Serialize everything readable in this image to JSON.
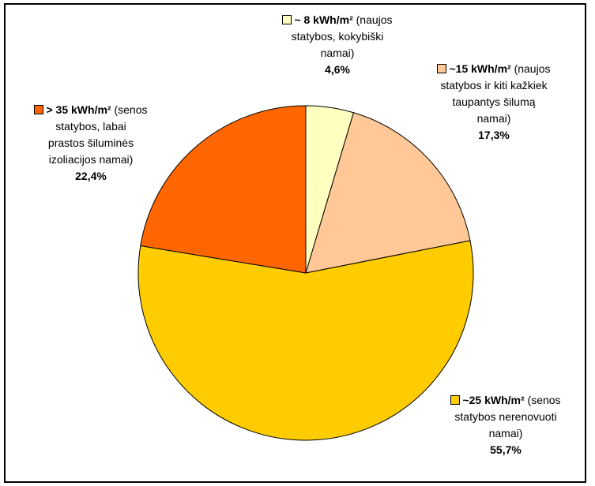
{
  "chart_data": {
    "type": "pie",
    "slices": [
      {
        "value": 4.6,
        "percent_label": "4,6%",
        "label_bold": "~ 8 kWh/m²",
        "label_rest": " (naujos",
        "label_lines": [
          "statybos, kokybiški",
          "namai)"
        ],
        "color": "#FFFFC0"
      },
      {
        "value": 17.3,
        "percent_label": "17,3%",
        "label_bold": "~15 kWh/m²",
        "label_rest": " (naujos",
        "label_lines": [
          "statybos ir kiti kažkiek",
          "taupantys šilumą",
          "namai)"
        ],
        "color": "#FFC896"
      },
      {
        "value": 55.7,
        "percent_label": "55,7%",
        "label_bold": "~25 kWh/m²",
        "label_rest": " (senos",
        "label_lines": [
          "statybos nerenovuoti",
          "namai)"
        ],
        "color": "#FFCC00"
      },
      {
        "value": 22.4,
        "percent_label": "22,4%",
        "label_bold": "> 35 kWh/m²",
        "label_rest": " (senos",
        "label_lines": [
          "statybos, labai",
          "prastos šiluminės",
          "izoliacijos namai)"
        ],
        "color": "#FF6600"
      }
    ]
  }
}
